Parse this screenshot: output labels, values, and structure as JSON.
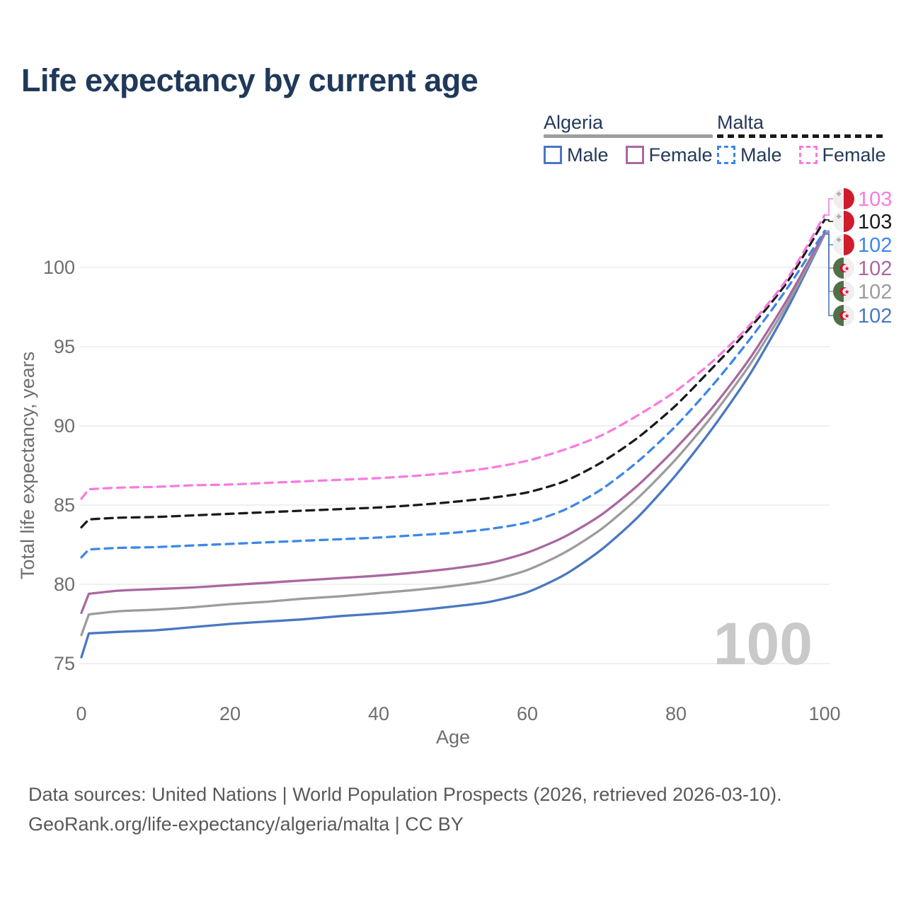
{
  "title": "Life expectancy by current age",
  "legend": {
    "groups": [
      {
        "id": "algeria",
        "name": "Algeria",
        "line_style": "solid",
        "line_color": "#9e9e9e",
        "items": [
          {
            "id": "algeria-male",
            "label": "Male",
            "color": "#4a77c2",
            "dash": false
          },
          {
            "id": "algeria-female",
            "label": "Female",
            "color": "#a9689f",
            "dash": false
          }
        ]
      },
      {
        "id": "malta",
        "name": "Malta",
        "line_style": "dashed",
        "line_color": "#1a1a1a",
        "items": [
          {
            "id": "malta-male",
            "label": "Male",
            "color": "#3d87e6",
            "dash": true
          },
          {
            "id": "malta-female",
            "label": "Female",
            "color": "#f87be0",
            "dash": true
          }
        ]
      }
    ]
  },
  "chart": {
    "current_age": "100"
  },
  "chart_data": {
    "type": "line",
    "title": "Life expectancy by current age",
    "xlabel": "Age",
    "ylabel": "Total life expectancy, years",
    "x": [
      0,
      1,
      5,
      10,
      15,
      20,
      25,
      30,
      35,
      40,
      45,
      50,
      55,
      60,
      65,
      70,
      75,
      80,
      85,
      90,
      95,
      100
    ],
    "xticks": [
      0,
      20,
      40,
      60,
      80,
      100
    ],
    "yticks": [
      75,
      80,
      85,
      90,
      95,
      100
    ],
    "xlim": [
      0,
      100
    ],
    "ylim": [
      74.5,
      104
    ],
    "grid": "horizontal",
    "legend_position": "top-right",
    "series": [
      {
        "name": "Algeria Male",
        "country": "Algeria",
        "sex": "male",
        "color": "#4a77c2",
        "dash": false,
        "flag": "algeria",
        "end_label": "102",
        "values": [
          75.4,
          76.9,
          77.0,
          77.1,
          77.3,
          77.5,
          77.65,
          77.8,
          78.0,
          78.15,
          78.35,
          78.6,
          78.9,
          79.5,
          80.6,
          82.2,
          84.3,
          86.9,
          89.9,
          93.3,
          97.4,
          102.1
        ]
      },
      {
        "name": "Algeria",
        "country": "Algeria",
        "sex": "both",
        "color": "#9c9c9c",
        "dash": false,
        "flag": "algeria",
        "end_label": "102",
        "values": [
          76.8,
          78.1,
          78.3,
          78.4,
          78.55,
          78.75,
          78.9,
          79.1,
          79.25,
          79.45,
          79.65,
          79.9,
          80.25,
          80.9,
          82.0,
          83.5,
          85.5,
          87.9,
          90.7,
          93.9,
          97.7,
          102.15
        ]
      },
      {
        "name": "Algeria Female",
        "country": "Algeria",
        "sex": "female",
        "color": "#a9689f",
        "dash": false,
        "flag": "algeria",
        "end_label": "102",
        "values": [
          78.2,
          79.4,
          79.6,
          79.7,
          79.8,
          79.95,
          80.1,
          80.25,
          80.4,
          80.55,
          80.75,
          81.0,
          81.35,
          82.0,
          83.0,
          84.4,
          86.3,
          88.6,
          91.2,
          94.3,
          98.0,
          102.2
        ]
      },
      {
        "name": "Malta Male",
        "country": "Malta",
        "sex": "male",
        "color": "#3d87e6",
        "dash": true,
        "flag": "malta",
        "end_label": "102",
        "values": [
          81.7,
          82.2,
          82.3,
          82.35,
          82.45,
          82.55,
          82.65,
          82.75,
          82.85,
          82.95,
          83.1,
          83.25,
          83.5,
          83.9,
          84.7,
          86.0,
          87.8,
          90.0,
          92.6,
          95.5,
          98.7,
          102.3
        ]
      },
      {
        "name": "Malta",
        "country": "Malta",
        "sex": "both",
        "color": "#1a1a1a",
        "dash": true,
        "flag": "malta",
        "end_label": "103",
        "values": [
          83.6,
          84.1,
          84.2,
          84.25,
          84.35,
          84.45,
          84.55,
          84.65,
          84.75,
          84.85,
          85.0,
          85.2,
          85.45,
          85.8,
          86.5,
          87.7,
          89.3,
          91.3,
          93.7,
          96.2,
          99.1,
          103.0
        ]
      },
      {
        "name": "Malta Female",
        "country": "Malta",
        "sex": "female",
        "color": "#f87be0",
        "dash": true,
        "flag": "malta",
        "end_label": "103",
        "values": [
          85.4,
          86.0,
          86.1,
          86.15,
          86.25,
          86.3,
          86.4,
          86.5,
          86.6,
          86.7,
          86.85,
          87.05,
          87.35,
          87.8,
          88.5,
          89.4,
          90.7,
          92.2,
          94.1,
          96.4,
          99.3,
          103.3
        ]
      }
    ],
    "end_labels_top_to_bottom": [
      "Malta Female",
      "Malta",
      "Malta Male",
      "Algeria Female",
      "Algeria",
      "Algeria Male"
    ],
    "flag_colors": {
      "malta": {
        "left": "#efefef",
        "right": "#cf1b2b",
        "cross": "#ababab"
      },
      "algeria": {
        "left": "#4e7145",
        "right": "#efefef",
        "emblem": "#d21034"
      }
    }
  },
  "footer": {
    "line1": "Data sources: United Nations | World Population Prospects (2026, retrieved 2026-03-10).",
    "line2": "GeoRank.org/life-expectancy/algeria/malta | CC BY"
  }
}
